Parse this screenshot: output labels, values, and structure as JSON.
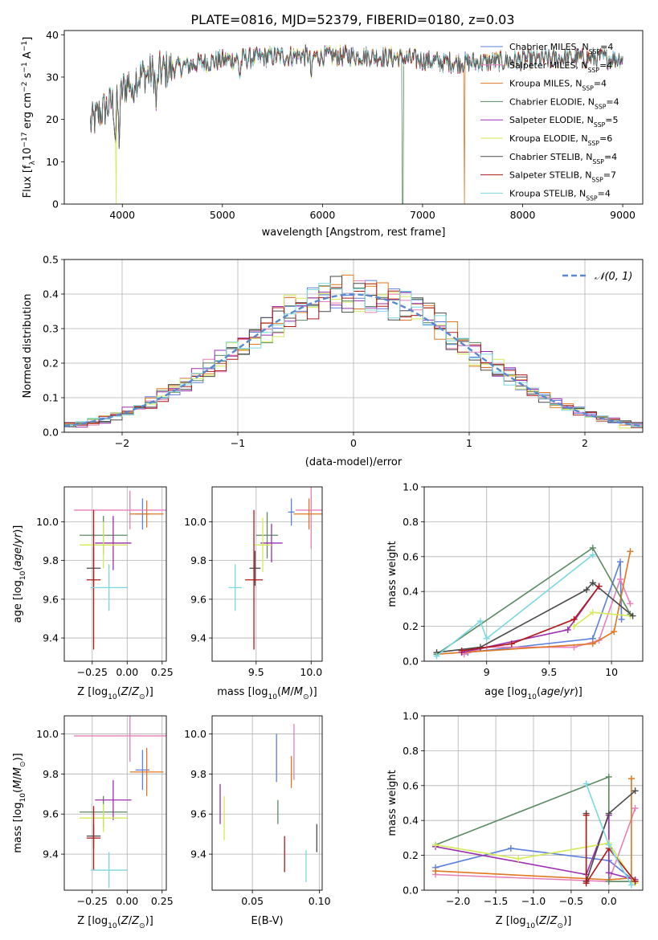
{
  "title": "PLATE=0816, MJD=52379, FIBERID=0180, z=0.03",
  "series": [
    {
      "key": "cm",
      "label": "Chabrier MILES, N",
      "sub": "SSP",
      "tail": "=4",
      "color": "#5b7fdc"
    },
    {
      "key": "sm",
      "label": "Salpeter MILES, N",
      "sub": "SSP",
      "tail": "=4",
      "color": "#e77fb8"
    },
    {
      "key": "km",
      "label": "Kroupa MILES, N",
      "sub": "SSP",
      "tail": "=4",
      "color": "#e0761f"
    },
    {
      "key": "ce",
      "label": "Chabrier ELODIE, N",
      "sub": "SSP",
      "tail": "=4",
      "color": "#5a8a62"
    },
    {
      "key": "se",
      "label": "Salpeter ELODIE, N",
      "sub": "SSP",
      "tail": "=5",
      "color": "#9b2fb0"
    },
    {
      "key": "ke",
      "label": "Kroupa ELODIE, N",
      "sub": "SSP",
      "tail": "=6",
      "color": "#d4ea58"
    },
    {
      "key": "cs",
      "label": "Chabrier STELIB, N",
      "sub": "SSP",
      "tail": "=4",
      "color": "#4a4a4a"
    },
    {
      "key": "ss",
      "label": "Salpeter STELIB, N",
      "sub": "SSP",
      "tail": "=7",
      "color": "#b01a1a"
    },
    {
      "key": "ks",
      "label": "Kroupa STELIB, N",
      "sub": "SSP",
      "tail": "=4",
      "color": "#7ad8e0"
    }
  ],
  "chart_data": [
    {
      "id": "spectrum",
      "type": "line",
      "xlabel": "wavelength [Angstrom, rest frame]",
      "ylabel": "Flux [f_λ 10^-17 erg cm^-2 s^-1 A^-1]",
      "xlim": [
        3420,
        9200
      ],
      "ylim": [
        0,
        41
      ],
      "xticks": [
        4000,
        5000,
        6000,
        7000,
        8000,
        9000
      ],
      "yticks": [
        0,
        10,
        20,
        30,
        40
      ],
      "continuum": [
        [
          3680,
          19
        ],
        [
          3800,
          22
        ],
        [
          3900,
          24
        ],
        [
          4000,
          27
        ],
        [
          4100,
          30
        ],
        [
          4300,
          31
        ],
        [
          4500,
          32
        ],
        [
          4800,
          33.5
        ],
        [
          5000,
          34
        ],
        [
          5300,
          34.5
        ],
        [
          5600,
          35
        ],
        [
          6000,
          35
        ],
        [
          6400,
          35
        ],
        [
          6800,
          34.5
        ],
        [
          7200,
          33.5
        ],
        [
          7600,
          33.5
        ],
        [
          8000,
          34
        ],
        [
          8400,
          34.5
        ],
        [
          8800,
          34.5
        ],
        [
          9000,
          34.5
        ]
      ],
      "dips": [
        [
          3930,
          9
        ],
        [
          3968,
          10
        ],
        [
          4102,
          6
        ],
        [
          4340,
          8
        ],
        [
          5175,
          4
        ],
        [
          5890,
          5
        ]
      ],
      "dropouts": [
        {
          "key": "ke",
          "x": 3940
        },
        {
          "key": "ce",
          "x": 6800
        },
        {
          "key": "km",
          "x": 7420
        }
      ],
      "legend": "top-right",
      "grid": false
    },
    {
      "id": "residuals",
      "type": "step",
      "xlabel": "(data-model)/error",
      "ylabel": "Normed distribution",
      "xlim": [
        -2.5,
        2.5
      ],
      "ylim": [
        0,
        0.5
      ],
      "xticks": [
        -2,
        -1,
        0,
        1,
        2
      ],
      "yticks": [
        0,
        0.1,
        0.2,
        0.3,
        0.4,
        0.5
      ],
      "bin_width": 0.1,
      "reference": {
        "label": "N(0,1)",
        "color": "#5b88d0"
      },
      "legend": "top-right",
      "grid": true
    },
    {
      "id": "age_vs_Z",
      "type": "errorbar",
      "xlabel": "Z [log10(Z/Z⊙)]",
      "ylabel": "age [log10(age/yr)]",
      "xlim": [
        -0.45,
        0.28
      ],
      "ylim": [
        9.28,
        10.18
      ],
      "xticks": [
        -0.25,
        0,
        0.25
      ],
      "xticklabels": [
        "−0.25",
        "0.00",
        "0.25"
      ],
      "yticks": [
        9.4,
        9.6,
        9.8,
        10.0
      ],
      "points": {
        "cm": {
          "x": 0.11,
          "xe": 0.05,
          "y": 10.04,
          "ye": 0.08
        },
        "sm": {
          "x": 0.02,
          "xe": 0.4,
          "y": 10.06,
          "ye": 0.1
        },
        "km": {
          "x": 0.14,
          "xe": 0.12,
          "y": 10.04,
          "ye": 0.07
        },
        "ce": {
          "x": -0.17,
          "xe": 0.17,
          "y": 9.93,
          "ye": 0.1
        },
        "se": {
          "x": -0.1,
          "xe": 0.13,
          "y": 9.89,
          "ye": 0.14
        },
        "ke": {
          "x": -0.17,
          "xe": 0.17,
          "y": 9.88,
          "ye": 0.12
        },
        "cs": {
          "x": -0.24,
          "xe": 0.05,
          "y": 9.76,
          "ye": 0.11
        },
        "ss": {
          "x": -0.24,
          "xe": 0.05,
          "y": 9.7,
          "ye": 0.36
        },
        "ks": {
          "x": -0.13,
          "xe": 0.13,
          "y": 9.66,
          "ye": 0.12
        }
      }
    },
    {
      "id": "age_vs_mass",
      "type": "errorbar",
      "xlabel": "mass [log10(M/M⊙)]",
      "ylabel": "",
      "xlim": [
        9.1,
        10.1
      ],
      "ylim": [
        9.28,
        10.18
      ],
      "xticks": [
        9.5,
        10.0
      ],
      "xticklabels": [
        "9.5",
        "10.0"
      ],
      "yticks": [
        9.4,
        9.6,
        9.8,
        10.0
      ],
      "points": {
        "cm": {
          "x": 9.82,
          "xe": 0.03,
          "y": 10.05,
          "ye": 0.07
        },
        "sm": {
          "x": 10.0,
          "xe": 0.14,
          "y": 10.06,
          "ye": 0.2
        },
        "km": {
          "x": 9.98,
          "xe": 0.14,
          "y": 10.04,
          "ye": 0.08
        },
        "ce": {
          "x": 9.6,
          "xe": 0.1,
          "y": 9.93,
          "ye": 0.12
        },
        "se": {
          "x": 9.64,
          "xe": 0.1,
          "y": 9.89,
          "ye": 0.1
        },
        "ke": {
          "x": 9.56,
          "xe": 0.08,
          "y": 9.88,
          "ye": 0.14
        },
        "cs": {
          "x": 9.49,
          "xe": 0.05,
          "y": 9.76,
          "ye": 0.09
        },
        "ss": {
          "x": 9.48,
          "xe": 0.08,
          "y": 9.7,
          "ye": 0.36
        },
        "ks": {
          "x": 9.31,
          "xe": 0.06,
          "y": 9.66,
          "ye": 0.12
        }
      }
    },
    {
      "id": "weight_vs_age",
      "type": "line",
      "xlabel": "age [log10(age/yr)]",
      "ylabel": "mass weight",
      "xlim": [
        8.5,
        10.25
      ],
      "ylim": [
        0,
        1
      ],
      "xticks": [
        9.0,
        9.5,
        10.0
      ],
      "yticks": [
        0,
        0.2,
        0.4,
        0.6,
        0.8,
        1.0
      ],
      "lines": {
        "cm": [
          [
            8.85,
            0.05
          ],
          [
            9.85,
            0.13
          ],
          [
            10.07,
            0.57
          ],
          [
            10.08,
            0.24
          ]
        ],
        "sm": [
          [
            8.82,
            0.04
          ],
          [
            9.0,
            0.08
          ],
          [
            9.7,
            0.08
          ],
          [
            9.9,
            0.12
          ],
          [
            10.07,
            0.47
          ],
          [
            10.15,
            0.33
          ]
        ],
        "km": [
          [
            8.6,
            0.04
          ],
          [
            8.8,
            0.05
          ],
          [
            9.85,
            0.1
          ],
          [
            10.02,
            0.17
          ],
          [
            10.15,
            0.63
          ]
        ],
        "ce": [
          [
            8.6,
            0.04
          ],
          [
            9.85,
            0.65
          ],
          [
            10.15,
            0.27
          ]
        ],
        "se": [
          [
            8.8,
            0.05
          ],
          [
            9.65,
            0.18
          ],
          [
            9.9,
            0.43
          ]
        ],
        "ke": [
          [
            9.7,
            0.2
          ],
          [
            9.85,
            0.28
          ],
          [
            10.15,
            0.26
          ]
        ],
        "cs": [
          [
            8.6,
            0.05
          ],
          [
            8.95,
            0.08
          ],
          [
            9.8,
            0.41
          ],
          [
            9.85,
            0.45
          ],
          [
            10.17,
            0.26
          ]
        ],
        "ss": [
          [
            8.8,
            0.06
          ],
          [
            9.2,
            0.1
          ],
          [
            9.7,
            0.24
          ],
          [
            9.9,
            0.43
          ]
        ],
        "ks": [
          [
            8.6,
            0.03
          ],
          [
            8.95,
            0.23
          ],
          [
            9.0,
            0.13
          ],
          [
            9.85,
            0.61
          ]
        ]
      }
    },
    {
      "id": "mass_vs_Z",
      "type": "errorbar",
      "xlabel": "Z [log10(Z/Z⊙)]",
      "ylabel": "mass [log10(M/M⊙)]",
      "xlim": [
        -0.45,
        0.28
      ],
      "ylim": [
        9.22,
        10.09
      ],
      "xticks": [
        -0.25,
        0,
        0.25
      ],
      "xticklabels": [
        "−0.25",
        "0.00",
        "0.25"
      ],
      "yticks": [
        9.4,
        9.6,
        9.8,
        10.0
      ],
      "points": {
        "cm": {
          "x": 0.11,
          "xe": 0.05,
          "y": 9.82,
          "ye": 0.1
        },
        "sm": {
          "x": 0.02,
          "xe": 0.4,
          "y": 9.99,
          "ye": 0.13
        },
        "km": {
          "x": 0.14,
          "xe": 0.12,
          "y": 9.81,
          "ye": 0.12
        },
        "ce": {
          "x": -0.17,
          "xe": 0.17,
          "y": 9.61,
          "ye": 0.08
        },
        "se": {
          "x": -0.1,
          "xe": 0.13,
          "y": 9.67,
          "ye": 0.1
        },
        "ke": {
          "x": -0.17,
          "xe": 0.17,
          "y": 9.58,
          "ye": 0.07
        },
        "cs": {
          "x": -0.24,
          "xe": 0.05,
          "y": 9.49,
          "ye": 0.06
        },
        "ss": {
          "x": -0.24,
          "xe": 0.05,
          "y": 9.48,
          "ye": 0.16
        },
        "ks": {
          "x": -0.13,
          "xe": 0.13,
          "y": 9.32,
          "ye": 0.09
        }
      }
    },
    {
      "id": "mass_vs_ebv",
      "type": "errorbar",
      "xlabel": "E(B-V)",
      "ylabel": "",
      "xlim": [
        0.02,
        0.102
      ],
      "ylim": [
        9.22,
        10.09
      ],
      "xticks": [
        0.05,
        0.1
      ],
      "xticklabels": [
        "0.05",
        "0.10"
      ],
      "yticks": [
        9.4,
        9.6,
        9.8,
        10.0
      ],
      "points": {
        "cm": {
          "x": 0.068,
          "xe": 0,
          "y": 9.88,
          "ye": 0.12
        },
        "sm": {
          "x": 0.081,
          "xe": 0,
          "y": 9.91,
          "ye": 0.14
        },
        "km": {
          "x": 0.079,
          "xe": 0,
          "y": 9.81,
          "ye": 0.08
        },
        "ce": {
          "x": 0.069,
          "xe": 0,
          "y": 9.61,
          "ye": 0.06
        },
        "se": {
          "x": 0.026,
          "xe": 0,
          "y": 9.65,
          "ye": 0.1
        },
        "ke": {
          "x": 0.029,
          "xe": 0,
          "y": 9.58,
          "ye": 0.11
        },
        "cs": {
          "x": 0.098,
          "xe": 0,
          "y": 9.48,
          "ye": 0.07
        },
        "ss": {
          "x": 0.074,
          "xe": 0,
          "y": 9.4,
          "ye": 0.09
        },
        "ks": {
          "x": 0.09,
          "xe": 0,
          "y": 9.34,
          "ye": 0.08
        }
      }
    },
    {
      "id": "weight_vs_Z",
      "type": "line",
      "xlabel": "Z [log10(Z/Z⊙)]",
      "ylabel": "mass weight",
      "xlim": [
        -2.45,
        0.45
      ],
      "ylim": [
        0,
        1
      ],
      "xticks": [
        -2,
        -1.5,
        -1,
        -0.5,
        0
      ],
      "xticklabels": [
        "−2.0",
        "−1.5",
        "−1.0",
        "−0.5",
        "0.0"
      ],
      "yticks": [
        0,
        0.2,
        0.4,
        0.6,
        0.8,
        1.0
      ],
      "lines": {
        "cm": [
          [
            -2.3,
            0.13
          ],
          [
            -1.3,
            0.24
          ],
          [
            0.0,
            0.17
          ],
          [
            0.35,
            0.05
          ]
        ],
        "sm": [
          [
            -2.3,
            0.09
          ],
          [
            0.0,
            0.05
          ],
          [
            0.35,
            0.47
          ]
        ],
        "km": [
          [
            -2.3,
            0.11
          ],
          [
            0.0,
            0.06
          ],
          [
            0.3,
            0.07
          ],
          [
            0.3,
            0.64
          ]
        ],
        "ce": [
          [
            -2.3,
            0.26
          ],
          [
            0.0,
            0.65
          ],
          [
            0.0,
            0.05
          ],
          [
            0.35,
            0.05
          ]
        ],
        "se": [
          [
            -2.3,
            0.25
          ],
          [
            -0.3,
            0.09
          ],
          [
            0.0,
            0.43
          ],
          [
            0.0,
            0.1
          ],
          [
            0.35,
            0.06
          ]
        ],
        "ke": [
          [
            -2.3,
            0.26
          ],
          [
            -1.2,
            0.18
          ],
          [
            0.0,
            0.27
          ],
          [
            0.35,
            0.04
          ]
        ],
        "cs": [
          [
            -0.3,
            0.44
          ],
          [
            -0.3,
            0.05
          ],
          [
            0.0,
            0.44
          ],
          [
            0.35,
            0.57
          ]
        ],
        "ss": [
          [
            -0.3,
            0.43
          ],
          [
            -0.3,
            0.04
          ],
          [
            0.0,
            0.24
          ],
          [
            0.35,
            0.05
          ]
        ],
        "ks": [
          [
            -0.3,
            0.61
          ],
          [
            0.0,
            0.26
          ],
          [
            0.3,
            0.03
          ]
        ]
      }
    }
  ]
}
